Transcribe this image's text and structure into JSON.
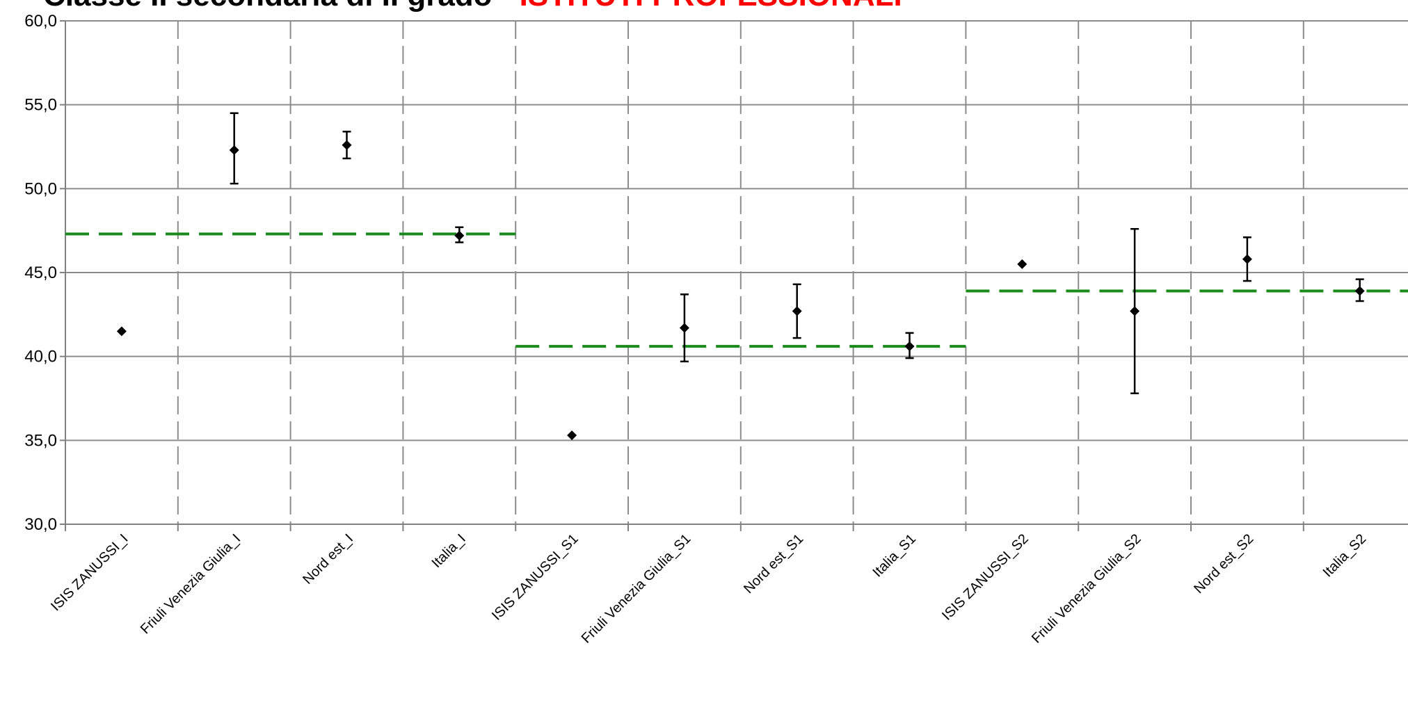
{
  "chart_data": {
    "type": "scatter",
    "title_part1": "Classe II secondaria di II grado - ",
    "title_part2": "ISTITUTI PROFESSIONALI",
    "title_part2_color": "#ff0000",
    "ylim": [
      30,
      60
    ],
    "yticks": [
      "30,0",
      "35,0",
      "40,0",
      "45,0",
      "50,0",
      "55,0",
      "60,0"
    ],
    "categories": [
      "ISIS ZANUSSI_I",
      "Friuli Venezia Giulia_I",
      "Nord est_I",
      "Italia_I",
      "ISIS ZANUSSI_S1",
      "Friuli Venezia Giulia_S1",
      "Nord est_S1",
      "Italia_S1",
      "ISIS ZANUSSI_S2",
      "Friuli Venezia Giulia_S2",
      "Nord est_S2",
      "Italia_S2"
    ],
    "points": [
      {
        "y": 41.5,
        "low": null,
        "high": null
      },
      {
        "y": 52.3,
        "low": 50.3,
        "high": 54.5
      },
      {
        "y": 52.6,
        "low": 51.8,
        "high": 53.4
      },
      {
        "y": 47.2,
        "low": 46.8,
        "high": 47.7
      },
      {
        "y": 35.3,
        "low": null,
        "high": null
      },
      {
        "y": 41.7,
        "low": 39.7,
        "high": 43.7
      },
      {
        "y": 42.7,
        "low": 41.1,
        "high": 44.3
      },
      {
        "y": 40.6,
        "low": 39.9,
        "high": 41.4
      },
      {
        "y": 45.5,
        "low": null,
        "high": null
      },
      {
        "y": 42.7,
        "low": 37.8,
        "high": 47.6
      },
      {
        "y": 45.8,
        "low": 44.5,
        "high": 47.1
      },
      {
        "y": 43.9,
        "low": 43.3,
        "high": 44.6
      }
    ],
    "reference_lines": [
      {
        "y": 47.3,
        "from_category": 0,
        "to_category": 3
      },
      {
        "y": 40.6,
        "from_category": 4,
        "to_category": 7
      },
      {
        "y": 43.9,
        "from_category": 8,
        "to_category": 11
      }
    ],
    "reference_line_color": "#1a8a1a",
    "marker_color": "#000000",
    "horizontal_grid": true,
    "vertical_grid": "dashed"
  }
}
